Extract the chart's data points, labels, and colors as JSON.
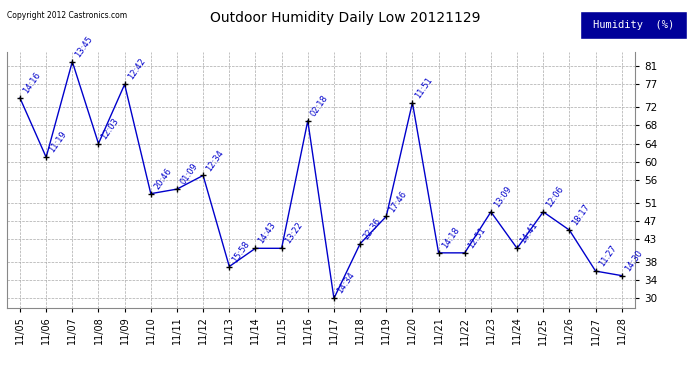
{
  "title": "Outdoor Humidity Daily Low 20121129",
  "copyright": "Copyright 2012 Castronics.com",
  "legend_label": "Humidity  (%)",
  "x_labels": [
    "11/05",
    "11/06",
    "11/07",
    "11/08",
    "11/09",
    "11/10",
    "11/11",
    "11/12",
    "11/13",
    "11/14",
    "11/15",
    "11/16",
    "11/17",
    "11/18",
    "11/19",
    "11/20",
    "11/21",
    "11/22",
    "11/23",
    "11/24",
    "11/25",
    "11/26",
    "11/27",
    "11/28"
  ],
  "y_values": [
    74,
    61,
    82,
    64,
    77,
    53,
    54,
    57,
    37,
    41,
    41,
    69,
    30,
    42,
    48,
    73,
    40,
    40,
    49,
    41,
    49,
    45,
    36,
    35
  ],
  "annotations": [
    "14:16",
    "11:19",
    "13:45",
    "12:03",
    "12:42",
    "20:46",
    "01:09",
    "12:34",
    "15:58",
    "14:43",
    "13:22",
    "02:18",
    "14:34",
    "22:36",
    "17:46",
    "11:51",
    "14:18",
    "12:51",
    "13:09",
    "14:41",
    "12:06",
    "18:17",
    "11:27",
    "14:30"
  ],
  "line_color": "#0000cc",
  "marker_color": "#000000",
  "background_color": "#ffffff",
  "grid_color": "#aaaaaa",
  "annotation_color": "#0000cc",
  "title_color": "#000000",
  "y_ticks": [
    30,
    34,
    38,
    43,
    47,
    51,
    56,
    60,
    64,
    68,
    72,
    77,
    81
  ],
  "y_min": 28,
  "y_max": 84,
  "legend_bg": "#000099",
  "legend_text_color": "#ffffff"
}
